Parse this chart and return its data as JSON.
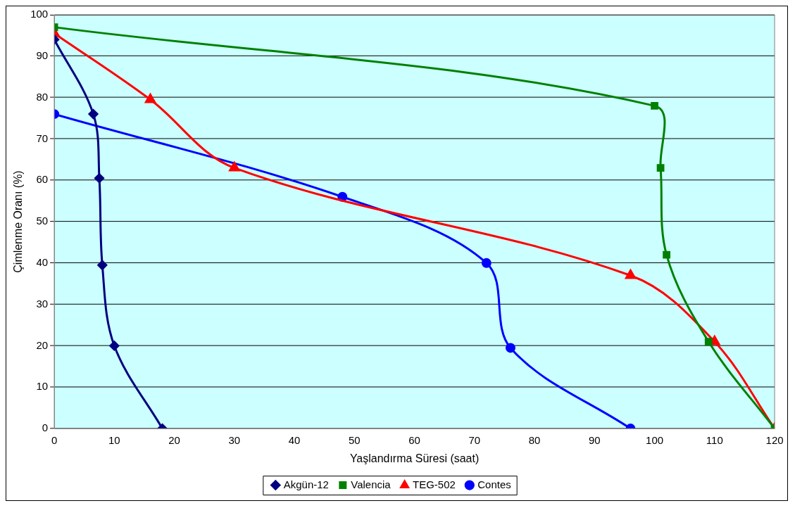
{
  "chart_data": {
    "type": "line",
    "xlabel": "Yaşlandırma Süresi (saat)",
    "ylabel": "Çimlenme Oranı (%)",
    "xlim": [
      0,
      120
    ],
    "xticks": [
      0,
      10,
      20,
      30,
      40,
      50,
      60,
      70,
      80,
      90,
      100,
      110,
      120
    ],
    "ylim": [
      0,
      100
    ],
    "yticks": [
      0,
      10,
      20,
      30,
      40,
      50,
      60,
      70,
      80,
      90,
      100
    ],
    "grid": "y",
    "legend": "bottom",
    "line_style": "solid",
    "series": [
      {
        "name": "Akgün-12",
        "color": "#000080",
        "marker": "diamond",
        "x": [
          0,
          6.5,
          7.5,
          8,
          10,
          18
        ],
        "values": [
          94,
          76,
          60.5,
          39.5,
          20,
          0
        ]
      },
      {
        "name": "Valencia",
        "color": "#008000",
        "marker": "square",
        "x": [
          0,
          100,
          101,
          102,
          109,
          120
        ],
        "values": [
          97,
          78,
          63,
          42,
          21,
          0
        ]
      },
      {
        "name": "TEG-502",
        "color": "#ff0000",
        "marker": "triangle",
        "x": [
          0,
          16,
          30,
          96,
          110,
          120
        ],
        "values": [
          95.5,
          79.5,
          63,
          37,
          21,
          0
        ]
      },
      {
        "name": "Contes",
        "color": "#0000ff",
        "marker": "circle",
        "x": [
          0,
          48,
          72,
          76,
          96
        ],
        "values": [
          76,
          56,
          40,
          19.5,
          0
        ]
      }
    ]
  }
}
